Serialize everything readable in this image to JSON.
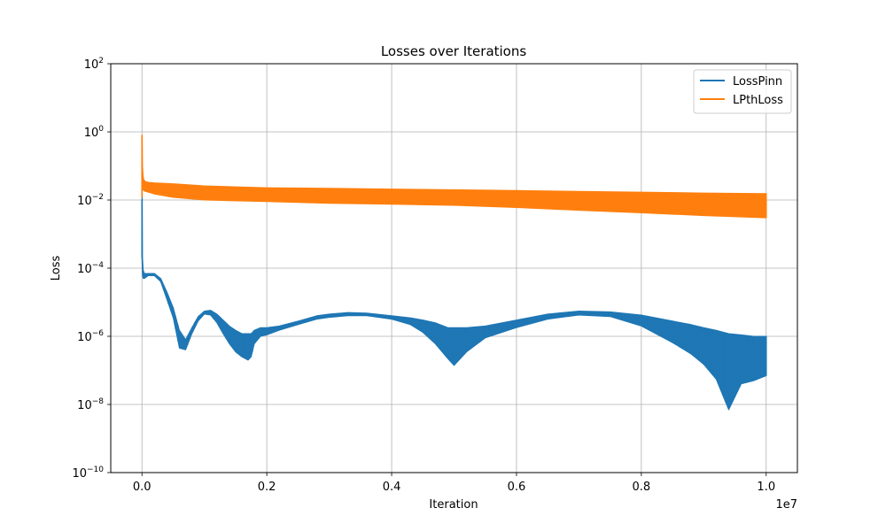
{
  "chart_data": {
    "type": "line",
    "title": "Losses over Iterations",
    "xlabel": "Iteration",
    "ylabel": "Loss",
    "x_scale_note": "1e7",
    "x_unit_multiplier": 10000000,
    "xlim": [
      -0.05,
      1.05
    ],
    "ylim_log10": [
      -10,
      2
    ],
    "yscale": "log",
    "grid": true,
    "legend_position": "top-right",
    "x_ticks": [
      {
        "value": 0.0,
        "label": "0.0"
      },
      {
        "value": 0.2,
        "label": "0.2"
      },
      {
        "value": 0.4,
        "label": "0.4"
      },
      {
        "value": 0.6,
        "label": "0.6"
      },
      {
        "value": 0.8,
        "label": "0.8"
      },
      {
        "value": 1.0,
        "label": "1.0"
      }
    ],
    "y_ticks": [
      {
        "exp": 2,
        "base": "10",
        "sup": "2"
      },
      {
        "exp": 0,
        "base": "10",
        "sup": "0"
      },
      {
        "exp": -2,
        "base": "10",
        "sup": "−2"
      },
      {
        "exp": -4,
        "base": "10",
        "sup": "−4"
      },
      {
        "exp": -6,
        "base": "10",
        "sup": "−6"
      },
      {
        "exp": -8,
        "base": "10",
        "sup": "−8"
      },
      {
        "exp": -10,
        "base": "10",
        "sup": "−10"
      }
    ],
    "series": [
      {
        "name": "LossPinn",
        "color": "#1f77b4",
        "x": [
          0.0,
          0.0005,
          0.001,
          0.002,
          0.004,
          0.01,
          0.02,
          0.03,
          0.04,
          0.05,
          0.06,
          0.07,
          0.08,
          0.09,
          0.1,
          0.11,
          0.12,
          0.13,
          0.14,
          0.15,
          0.16,
          0.17,
          0.175,
          0.18,
          0.19,
          0.2,
          0.22,
          0.25,
          0.28,
          0.3,
          0.33,
          0.36,
          0.4,
          0.43,
          0.45,
          0.47,
          0.49,
          0.5,
          0.52,
          0.55,
          0.6,
          0.65,
          0.7,
          0.75,
          0.8,
          0.85,
          0.88,
          0.9,
          0.92,
          0.94,
          0.96,
          0.98,
          1.0
        ],
        "upper": [
          0.01,
          0.02,
          0.0002,
          9e-05,
          7e-05,
          7e-05,
          7e-05,
          5e-05,
          2e-05,
          7e-06,
          1.5e-06,
          8e-07,
          1.8e-06,
          3.8e-06,
          5.5e-06,
          5.8e-06,
          4.5e-06,
          3e-06,
          2e-06,
          1.5e-06,
          1.2e-06,
          1.2e-06,
          1.2e-06,
          1.5e-06,
          1.8e-06,
          1.8e-06,
          2e-06,
          2.8e-06,
          4e-06,
          4.5e-06,
          5e-06,
          4.8e-06,
          4e-06,
          3.5e-06,
          3e-06,
          2.5e-06,
          1.8e-06,
          1.8e-06,
          1.8e-06,
          2e-06,
          3e-06,
          4.5e-06,
          5.5e-06,
          5.2e-06,
          4.2e-06,
          2.8e-06,
          2.2e-06,
          1.8e-06,
          1.5e-06,
          1.2e-06,
          1.1e-06,
          1e-06,
          1e-06
        ],
        "lower": [
          0.0002,
          0.0001,
          6e-05,
          5e-05,
          5e-05,
          6e-05,
          6e-05,
          4e-05,
          1.2e-05,
          3.5e-06,
          4.5e-07,
          4e-07,
          1.2e-06,
          2.8e-06,
          4.5e-06,
          4.2e-06,
          2.5e-06,
          1.2e-06,
          6e-07,
          3.5e-07,
          2.5e-07,
          2e-07,
          2.5e-07,
          6e-07,
          1e-06,
          1.1e-06,
          1.5e-06,
          2.2e-06,
          3.2e-06,
          3.6e-06,
          4e-06,
          4e-06,
          3.2e-06,
          2.2e-06,
          1.3e-06,
          6e-07,
          2.2e-07,
          1.4e-07,
          3.5e-07,
          9e-07,
          1.8e-06,
          3.2e-06,
          4.2e-06,
          3.8e-06,
          2e-06,
          6.5e-07,
          3e-07,
          1.5e-07,
          5.5e-08,
          7e-09,
          4e-08,
          5e-08,
          7e-08
        ]
      },
      {
        "name": "LPthLoss",
        "color": "#ff7f0e",
        "x": [
          0.0,
          0.0005,
          0.001,
          0.002,
          0.003,
          0.005,
          0.01,
          0.02,
          0.05,
          0.1,
          0.2,
          0.3,
          0.4,
          0.5,
          0.6,
          0.7,
          0.8,
          0.9,
          1.0
        ],
        "upper": [
          0.8,
          0.8,
          0.1,
          0.05,
          0.04,
          0.035,
          0.033,
          0.032,
          0.03,
          0.026,
          0.023,
          0.022,
          0.021,
          0.02,
          0.019,
          0.018,
          0.017,
          0.016,
          0.0155
        ],
        "lower": [
          0.012,
          0.02,
          0.02,
          0.02,
          0.019,
          0.018,
          0.017,
          0.015,
          0.012,
          0.01,
          0.009,
          0.008,
          0.0075,
          0.007,
          0.006,
          0.005,
          0.0042,
          0.0035,
          0.003
        ]
      }
    ]
  }
}
